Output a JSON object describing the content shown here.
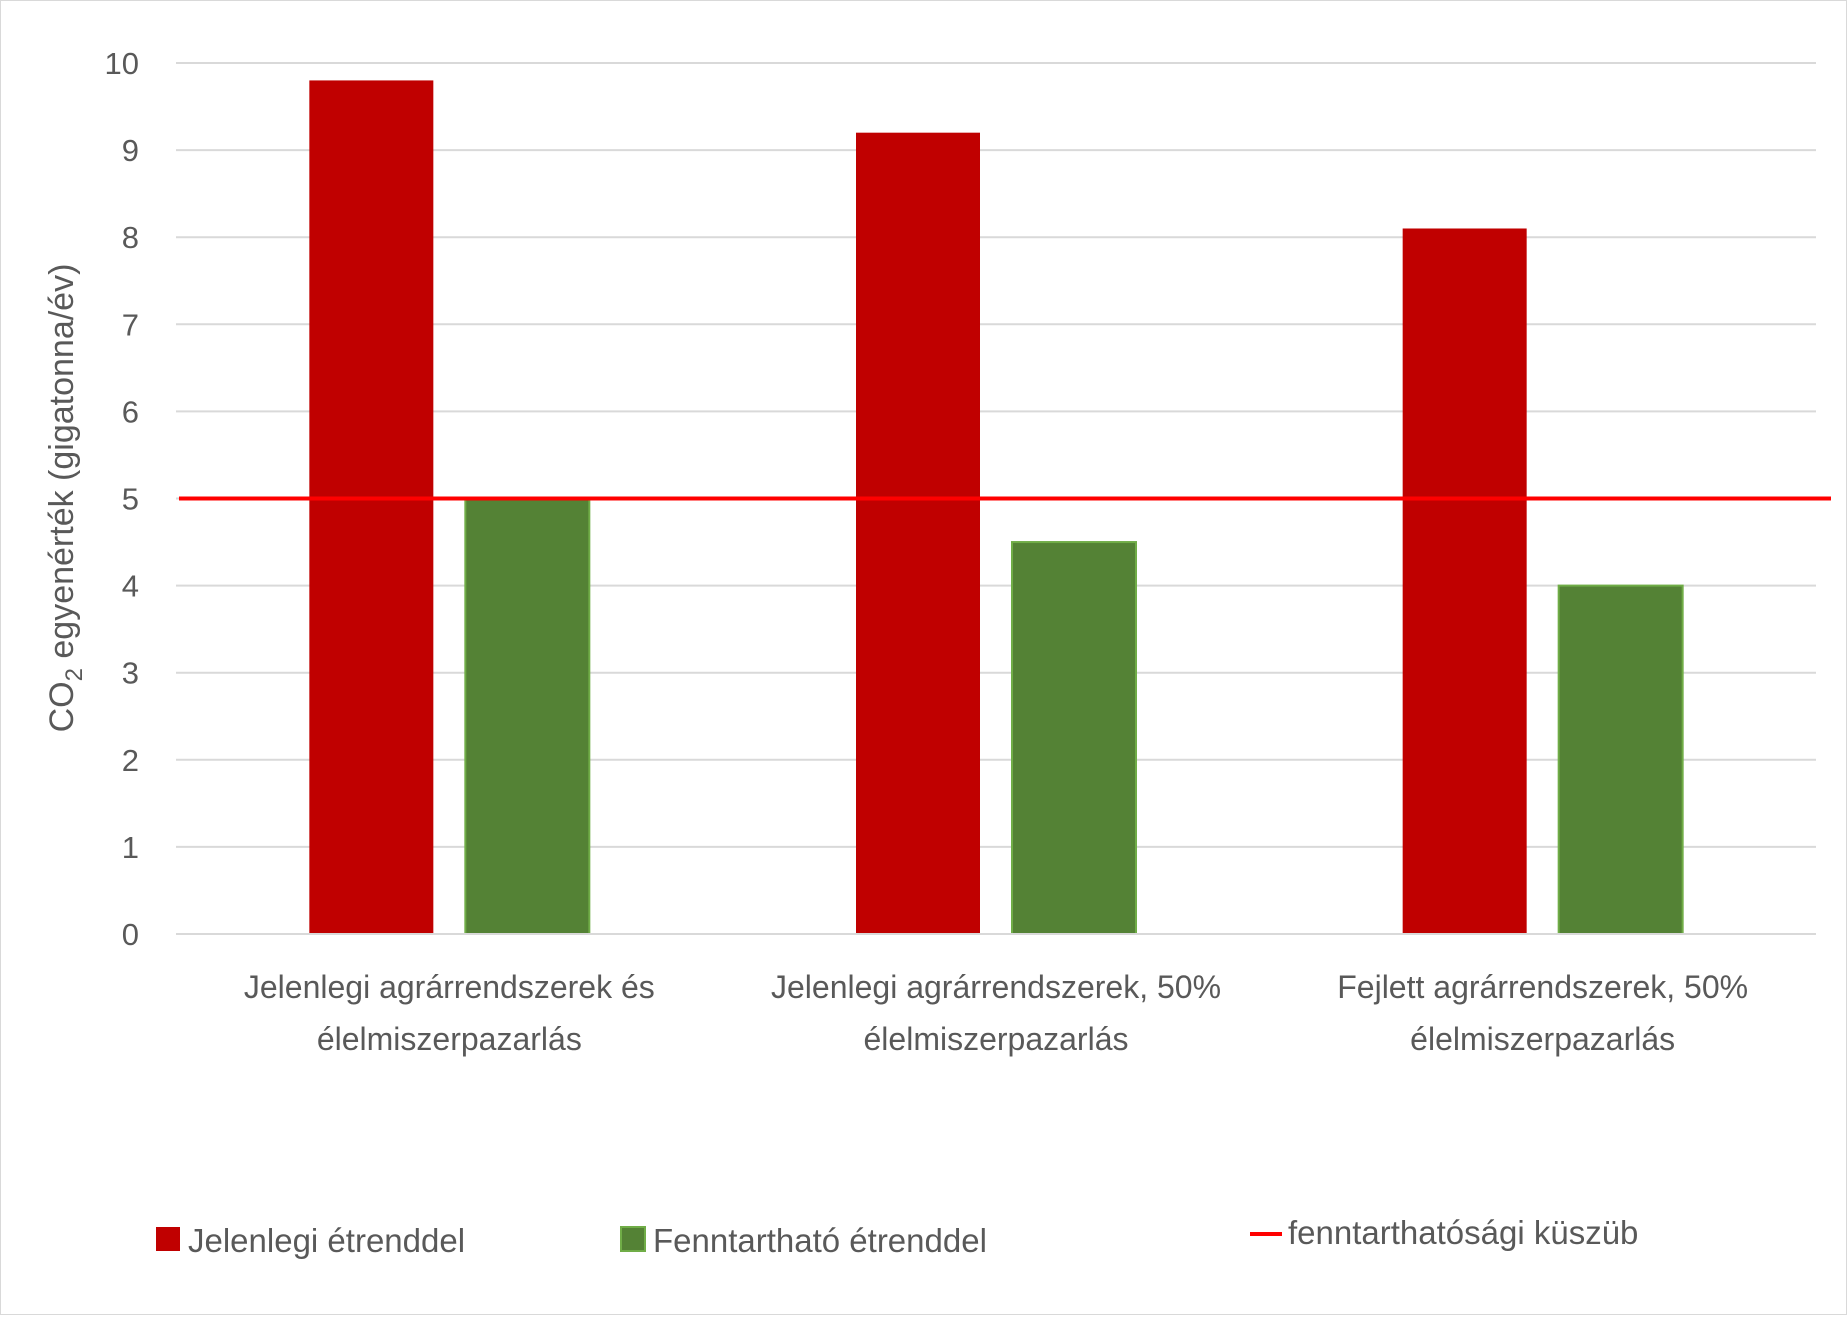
{
  "chart_data": {
    "type": "bar",
    "ylabel_main": "CO",
    "ylabel_sub": "2",
    "ylabel_rest": " egyenérték (gigatonna/év)",
    "ylim": [
      0,
      10
    ],
    "yticks": [
      "0",
      "1",
      "2",
      "3",
      "4",
      "5",
      "6",
      "7",
      "8",
      "9",
      "10"
    ],
    "grid": true,
    "categories": [
      [
        "Jelenlegi agrárrendszerek és",
        "élelmiszerpazarlás"
      ],
      [
        "Jelenlegi agrárrendszerek, 50%",
        "élelmiszerpazarlás"
      ],
      [
        "Fejlett agrárrendszerek, 50%",
        "élelmiszerpazarlás"
      ]
    ],
    "series": [
      {
        "name": "Jelenlegi étrenddel",
        "color": "#C00000",
        "values": [
          9.8,
          9.2,
          8.1
        ]
      },
      {
        "name": "Fenntartható étrenddel",
        "color": "#548235",
        "border": "#70AD47",
        "values": [
          5.0,
          4.5,
          4.0
        ]
      }
    ],
    "threshold": {
      "name": "fenntarthatósági küszüb",
      "value": 5.0,
      "color": "#FF0000"
    },
    "legend_position": "bottom"
  }
}
